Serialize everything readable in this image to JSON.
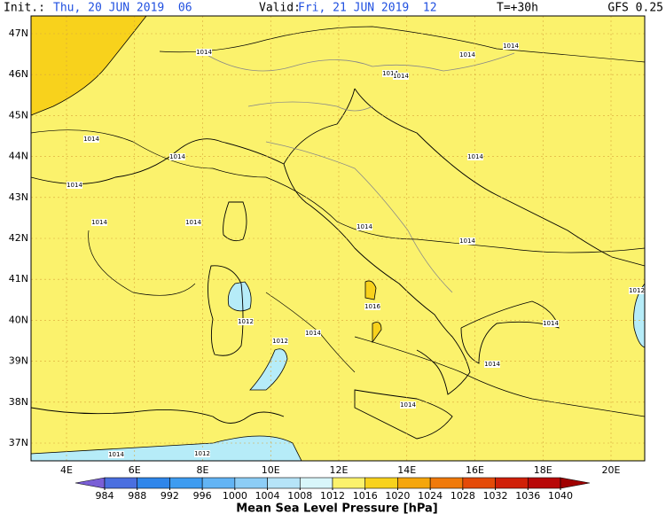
{
  "header": {
    "init_label": "Init.:",
    "init": "Thu, 20 JUN 2019  06",
    "valid_label": "Valid:",
    "valid": "Fri, 21 JUN 2019  12",
    "lead": "T=+30h",
    "model": "GFS 0.25"
  },
  "lat_labels": [
    "47N",
    "46N",
    "45N",
    "44N",
    "43N",
    "42N",
    "41N",
    "40N",
    "39N",
    "38N",
    "37N"
  ],
  "lon_labels": [
    "4E",
    "6E",
    "8E",
    "10E",
    "12E",
    "14E",
    "16E",
    "18E",
    "20E"
  ],
  "contour_labels": [
    "1014",
    "1014",
    "1014",
    "1014",
    "1014",
    "1014",
    "1014",
    "1014",
    "1014",
    "1014",
    "1014",
    "1014",
    "1014",
    "1014",
    "1014",
    "1014",
    "1014",
    "1014",
    "1012",
    "1012",
    "1012",
    "1012",
    "1016"
  ],
  "colorbar": {
    "title": "Mean Sea Level Pressure [hPa]",
    "ticks": [
      984,
      988,
      992,
      996,
      1000,
      1004,
      1008,
      1012,
      1016,
      1020,
      1024,
      1028,
      1032,
      1036,
      1040
    ],
    "colors": [
      "#7a5fd6",
      "#4a6fe0",
      "#2f86ea",
      "#3e9cf0",
      "#62b4f4",
      "#8ccdf6",
      "#b6e4f8",
      "#d8f6fa",
      "#fbf26c",
      "#f8d21c",
      "#f5a60c",
      "#f07a0a",
      "#e44a08",
      "#d02008",
      "#b80808",
      "#a00000"
    ]
  }
}
